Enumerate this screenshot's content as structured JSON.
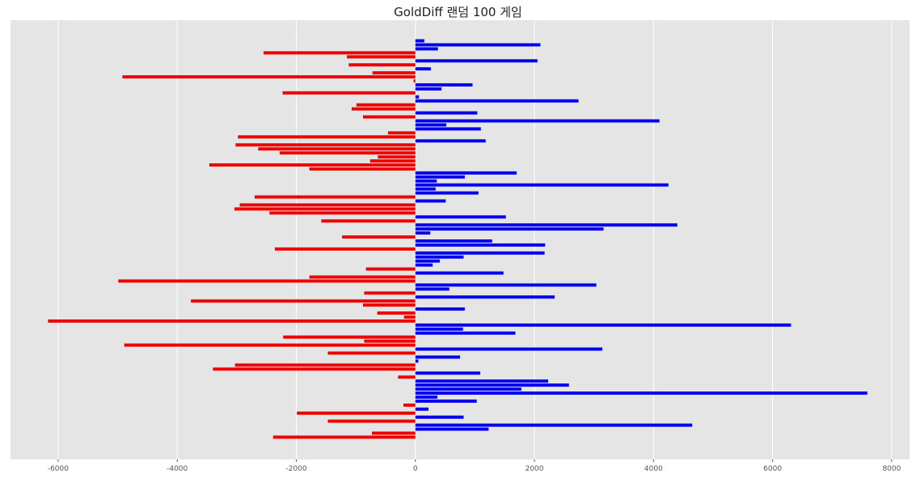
{
  "chart_data": {
    "type": "bar",
    "orientation": "horizontal",
    "title": "GoldDiff 랜덤 100 게임",
    "xlabel": "",
    "ylabel": "",
    "xlim": [
      -6800,
      8300
    ],
    "xticks": [
      -6000,
      -4000,
      -2000,
      0,
      2000,
      4000,
      6000,
      8000
    ],
    "xtick_labels": [
      "-6000",
      "-4000",
      "-2000",
      "0",
      "2000",
      "4000",
      "6000",
      "8000"
    ],
    "grid": true,
    "legend": "none",
    "colors": {
      "positive": "#0000ee",
      "negative": "#ee0000",
      "plot_bg": "#e5e5e5",
      "grid": "#ffffff"
    },
    "values": [
      150,
      2100,
      380,
      -2550,
      -1150,
      2050,
      -1120,
      260,
      -720,
      -4920,
      -30,
      960,
      440,
      -2230,
      60,
      2740,
      -990,
      -1070,
      1040,
      -880,
      4100,
      520,
      1100,
      -460,
      -2980,
      1180,
      -3020,
      -2640,
      -2280,
      -630,
      -760,
      -3460,
      -1780,
      1700,
      830,
      360,
      4250,
      340,
      1060,
      -2700,
      510,
      -2950,
      -3040,
      -2450,
      1520,
      -1580,
      4400,
      3160,
      250,
      -1230,
      1290,
      2180,
      -2360,
      2170,
      810,
      410,
      290,
      -830,
      1480,
      -1780,
      -4990,
      3040,
      570,
      -860,
      2340,
      -3770,
      -880,
      830,
      -640,
      -190,
      -6170,
      6310,
      800,
      1680,
      -2220,
      -860,
      -4890,
      3140,
      -1470,
      750,
      50,
      -3030,
      -3400,
      1090,
      -290,
      2230,
      2580,
      1780,
      7590,
      370,
      1030,
      -200,
      220,
      -1990,
      810,
      -1470,
      4650,
      1230,
      -730,
      -2390
    ]
  }
}
